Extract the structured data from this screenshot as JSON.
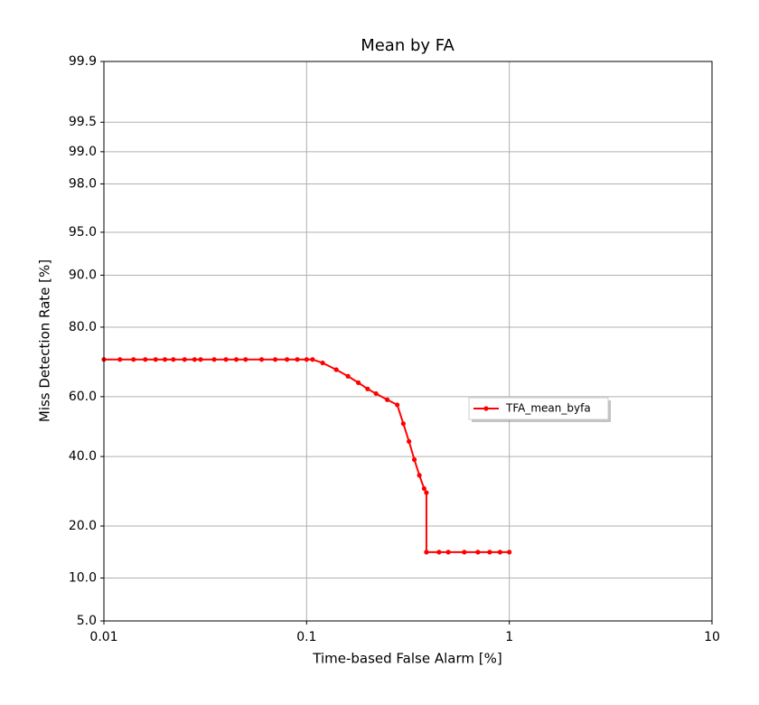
{
  "chart_data": {
    "type": "line",
    "title": "Mean by FA",
    "xlabel": "Time-based False Alarm [%]",
    "ylabel": "Miss Detection Rate [%]",
    "xscale": "log",
    "yscale": "probit",
    "grid": true,
    "xlim": [
      0.01,
      10
    ],
    "xticks": [
      0.01,
      0.1,
      1,
      10
    ],
    "ylim": [
      5,
      99.9
    ],
    "yticks": [
      {
        "value": 5,
        "label": "5.0"
      },
      {
        "value": 10,
        "label": "10.0"
      },
      {
        "value": 20,
        "label": "20.0"
      },
      {
        "value": 40,
        "label": "40.0"
      },
      {
        "value": 60,
        "label": "60.0"
      },
      {
        "value": 80,
        "label": "80.0"
      },
      {
        "value": 90,
        "label": "90.0"
      },
      {
        "value": 95,
        "label": "95.0"
      },
      {
        "value": 98,
        "label": "98.0"
      },
      {
        "value": 99,
        "label": "99.0"
      },
      {
        "value": 99.5,
        "label": "99.5"
      },
      {
        "value": 99.9,
        "label": "99.9"
      }
    ],
    "x": [
      0.01,
      0.012,
      0.014,
      0.016,
      0.018,
      0.02,
      0.022,
      0.025,
      0.028,
      0.03,
      0.035,
      0.04,
      0.045,
      0.05,
      0.06,
      0.07,
      0.08,
      0.09,
      0.1,
      0.107,
      0.12,
      0.14,
      0.16,
      0.18,
      0.2,
      0.22,
      0.25,
      0.28,
      0.3,
      0.32,
      0.34,
      0.36,
      0.38,
      0.39,
      0.39,
      0.45,
      0.5,
      0.6,
      0.7,
      0.8,
      0.9,
      1.0
    ],
    "series": [
      {
        "name": "TFA_mean_byfa",
        "color": "#ff0000",
        "values": [
          71.5,
          71.5,
          71.5,
          71.5,
          71.5,
          71.5,
          71.5,
          71.5,
          71.5,
          71.5,
          71.5,
          71.5,
          71.5,
          71.5,
          71.5,
          71.5,
          71.5,
          71.5,
          71.5,
          71.5,
          70.5,
          68.5,
          66.5,
          64.5,
          62.5,
          61,
          59,
          57.3,
          51,
          45,
          39,
          34,
          30,
          28.8,
          14.4,
          14.4,
          14.4,
          14.4,
          14.4,
          14.4,
          14.4,
          14.4
        ]
      }
    ]
  }
}
